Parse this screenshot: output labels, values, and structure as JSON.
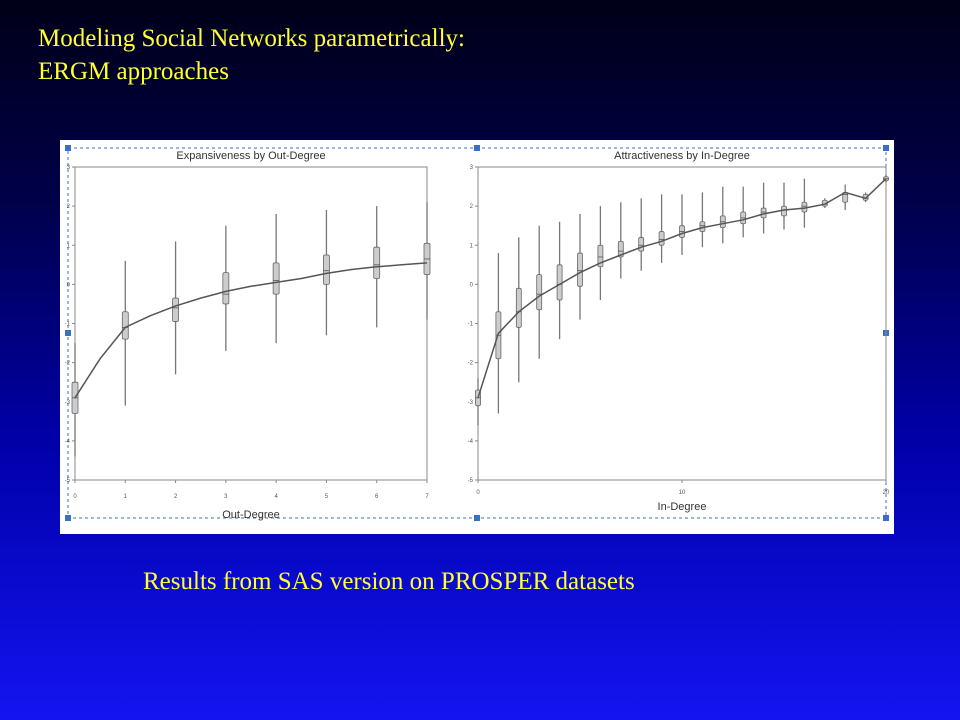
{
  "slide": {
    "title_line1": "Modeling Social Networks parametrically:",
    "title_line2": "ERGM approaches",
    "caption": "Results from SAS version on PROSPER datasets"
  },
  "colors": {
    "title_text": "#ffff33",
    "caption_text": "#ffff33",
    "panel_background": "#ffffff",
    "curve": "#555555",
    "whisker": "#777777",
    "box_fill": "#cccccc",
    "selection_handle": "#3a6fc4"
  },
  "chart_data": [
    {
      "type": "box",
      "title": "Expansiveness by Out-Degree",
      "xlabel": "Out-Degree",
      "ylabel": "",
      "x_ticks": [
        "0",
        "1",
        "2",
        "3",
        "4",
        "5",
        "6",
        "7"
      ],
      "y_ticks": [
        "3",
        "2",
        "1",
        "0",
        "-1",
        "-2",
        "-3",
        "-4",
        "-5"
      ],
      "xlim": [
        0,
        7
      ],
      "ylim": [
        -5,
        3
      ],
      "grid": false,
      "boxes": [
        {
          "x": 0,
          "min": -4.4,
          "q1": -3.3,
          "median": -2.9,
          "q3": -2.5,
          "max": -1.5
        },
        {
          "x": 1,
          "min": -3.1,
          "q1": -1.4,
          "median": -1.1,
          "q3": -0.7,
          "max": 0.6
        },
        {
          "x": 2,
          "min": -2.3,
          "q1": -0.95,
          "median": -0.6,
          "q3": -0.35,
          "max": 1.1
        },
        {
          "x": 3,
          "min": -1.7,
          "q1": -0.5,
          "median": -0.25,
          "q3": 0.3,
          "max": 1.5
        },
        {
          "x": 4,
          "min": -1.5,
          "q1": -0.25,
          "median": 0.1,
          "q3": 0.55,
          "max": 1.8
        },
        {
          "x": 5,
          "min": -1.3,
          "q1": 0.0,
          "median": 0.35,
          "q3": 0.75,
          "max": 1.9
        },
        {
          "x": 6,
          "min": -1.1,
          "q1": 0.15,
          "median": 0.5,
          "q3": 0.95,
          "max": 2.0
        },
        {
          "x": 7,
          "min": -0.9,
          "q1": 0.25,
          "median": 0.65,
          "q3": 1.05,
          "max": 2.1
        }
      ],
      "line": {
        "x": [
          0,
          0.5,
          1,
          1.5,
          2,
          2.5,
          3,
          3.5,
          4,
          4.5,
          5,
          5.5,
          6,
          6.5,
          7
        ],
        "y": [
          -2.9,
          -1.9,
          -1.1,
          -0.8,
          -0.55,
          -0.35,
          -0.18,
          -0.05,
          0.05,
          0.15,
          0.28,
          0.38,
          0.45,
          0.5,
          0.55
        ]
      }
    },
    {
      "type": "box",
      "title": "Attractiveness by In-Degree",
      "xlabel": "In-Degree",
      "ylabel": "",
      "x_ticks": [
        "0",
        "10",
        "20"
      ],
      "y_ticks": [
        "3",
        "2",
        "1",
        "0",
        "-1",
        "-2",
        "-3",
        "-4",
        "-5"
      ],
      "xlim": [
        0,
        20
      ],
      "ylim": [
        -5,
        3
      ],
      "grid": false,
      "boxes": [
        {
          "x": 0,
          "min": -3.6,
          "q1": -3.1,
          "median": -2.9,
          "q3": -2.7,
          "max": -2.4
        },
        {
          "x": 1,
          "min": -3.3,
          "q1": -1.9,
          "median": -1.3,
          "q3": -0.7,
          "max": 0.8
        },
        {
          "x": 2,
          "min": -2.5,
          "q1": -1.1,
          "median": -0.7,
          "q3": -0.1,
          "max": 1.2
        },
        {
          "x": 3,
          "min": -1.9,
          "q1": -0.65,
          "median": -0.25,
          "q3": 0.25,
          "max": 1.5
        },
        {
          "x": 4,
          "min": -1.4,
          "q1": -0.4,
          "median": 0.0,
          "q3": 0.5,
          "max": 1.6
        },
        {
          "x": 5,
          "min": -0.9,
          "q1": -0.05,
          "median": 0.35,
          "q3": 0.8,
          "max": 1.8
        },
        {
          "x": 6,
          "min": -0.4,
          "q1": 0.45,
          "median": 0.7,
          "q3": 1.0,
          "max": 2.0
        },
        {
          "x": 7,
          "min": 0.15,
          "q1": 0.7,
          "median": 0.85,
          "q3": 1.1,
          "max": 2.1
        },
        {
          "x": 8,
          "min": 0.35,
          "q1": 0.85,
          "median": 1.0,
          "q3": 1.2,
          "max": 2.2
        },
        {
          "x": 9,
          "min": 0.55,
          "q1": 1.0,
          "median": 1.15,
          "q3": 1.35,
          "max": 2.3
        },
        {
          "x": 10,
          "min": 0.75,
          "q1": 1.2,
          "median": 1.35,
          "q3": 1.5,
          "max": 2.3
        },
        {
          "x": 11,
          "min": 0.95,
          "q1": 1.35,
          "median": 1.5,
          "q3": 1.6,
          "max": 2.35
        },
        {
          "x": 12,
          "min": 1.05,
          "q1": 1.45,
          "median": 1.6,
          "q3": 1.75,
          "max": 2.5
        },
        {
          "x": 13,
          "min": 1.2,
          "q1": 1.55,
          "median": 1.7,
          "q3": 1.85,
          "max": 2.5
        },
        {
          "x": 14,
          "min": 1.3,
          "q1": 1.7,
          "median": 1.85,
          "q3": 1.95,
          "max": 2.6
        },
        {
          "x": 15,
          "min": 1.4,
          "q1": 1.75,
          "median": 1.9,
          "q3": 2.0,
          "max": 2.6
        },
        {
          "x": 16,
          "min": 1.45,
          "q1": 1.85,
          "median": 2.0,
          "q3": 2.1,
          "max": 2.7
        },
        {
          "x": 17,
          "min": 1.95,
          "q1": 2.0,
          "median": 2.05,
          "q3": 2.15,
          "max": 2.2
        },
        {
          "x": 18,
          "min": 1.9,
          "q1": 2.1,
          "median": 2.3,
          "q3": 2.35,
          "max": 2.55
        },
        {
          "x": 19,
          "min": 2.1,
          "q1": 2.15,
          "median": 2.2,
          "q3": 2.3,
          "max": 2.35
        },
        {
          "x": 20,
          "min": 2.6,
          "q1": 2.65,
          "median": 2.7,
          "q3": 2.75,
          "max": 2.8
        }
      ],
      "line": {
        "x": [
          0,
          1,
          2,
          3,
          4,
          5,
          6,
          7,
          8,
          9,
          10,
          11,
          12,
          13,
          14,
          15,
          16,
          17,
          18,
          19,
          20
        ],
        "y": [
          -2.9,
          -1.25,
          -0.7,
          -0.3,
          0.0,
          0.3,
          0.55,
          0.75,
          0.95,
          1.1,
          1.3,
          1.45,
          1.55,
          1.65,
          1.8,
          1.9,
          1.95,
          2.05,
          2.35,
          2.2,
          2.7
        ]
      }
    }
  ]
}
